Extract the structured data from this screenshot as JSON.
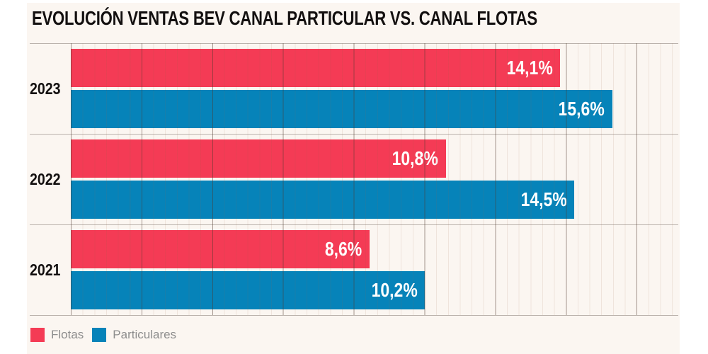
{
  "title": "EVOLUCIÓN VENTAS BEV CANAL PARTICULAR VS. CANAL FLOTAS",
  "legend": {
    "items": [
      {
        "label": "Flotas",
        "color": "#F43B55"
      },
      {
        "label": "Particulares",
        "color": "#0683B9"
      }
    ]
  },
  "chart_data": {
    "type": "bar",
    "orientation": "horizontal",
    "title": "EVOLUCIÓN VENTAS BEV CANAL PARTICULAR VS. CANAL FLOTAS",
    "categories": [
      "2023",
      "2022",
      "2021"
    ],
    "series": [
      {
        "name": "Flotas",
        "color": "#F43B55",
        "values": [
          14.1,
          10.8,
          8.6
        ],
        "labels": [
          "14,1%",
          "10,8%",
          "8,6%"
        ]
      },
      {
        "name": "Particulares",
        "color": "#0683B9",
        "values": [
          15.6,
          14.5,
          10.2
        ],
        "labels": [
          "15,6%",
          "14,5%",
          "10,2%"
        ]
      }
    ],
    "xlabel": "",
    "ylabel": "",
    "xlim": [
      0,
      17.5
    ],
    "grid": "vertical minor and major gridlines, unlabeled axis",
    "legend_position": "bottom-left",
    "value_labels": "inside right end of each bar, Spanish decimal comma"
  },
  "colors": {
    "background": "#FBF6F1",
    "flotas": "#F43B55",
    "particulares": "#0683B9",
    "axis_line": "#BAB2AC",
    "title_text": "#131010",
    "legend_text": "#8D8D8D"
  }
}
